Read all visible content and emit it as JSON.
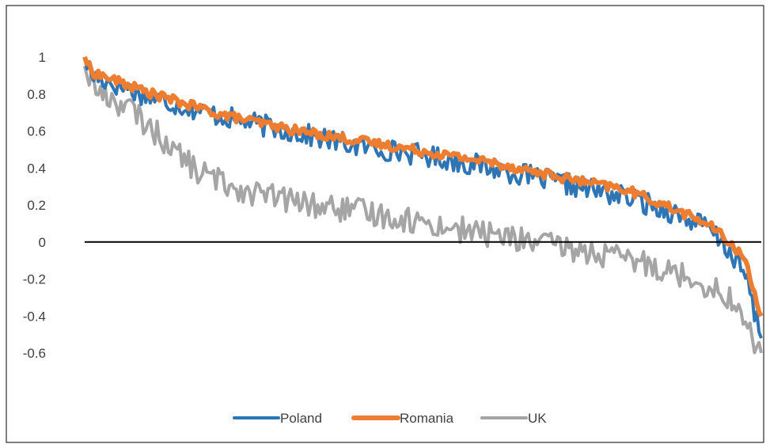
{
  "chart_data": {
    "type": "line",
    "title": "",
    "xlabel": "",
    "ylabel": "",
    "ylim": [
      -0.6,
      1.0
    ],
    "yticks": [
      "1",
      "0.8",
      "0.6",
      "0.4",
      "0.2",
      "0",
      "-0.2",
      "-0.4",
      "-0.6"
    ],
    "zero_line": true,
    "grid": false,
    "legend_position": "bottom",
    "n_points": 300,
    "series": [
      {
        "name": "Poland",
        "color": "#2E75B6",
        "anchors": [
          [
            0,
            1.0
          ],
          [
            3,
            0.9
          ],
          [
            30,
            0.78
          ],
          [
            60,
            0.68
          ],
          [
            90,
            0.6
          ],
          [
            120,
            0.52
          ],
          [
            150,
            0.47
          ],
          [
            180,
            0.4
          ],
          [
            210,
            0.32
          ],
          [
            240,
            0.24
          ],
          [
            260,
            0.16
          ],
          [
            275,
            0.08
          ],
          [
            285,
            -0.05
          ],
          [
            292,
            -0.18
          ],
          [
            299,
            -0.52
          ]
        ],
        "noise": 0.06
      },
      {
        "name": "Romania",
        "color": "#ED7D31",
        "anchors": [
          [
            0,
            1.0
          ],
          [
            3,
            0.92
          ],
          [
            30,
            0.8
          ],
          [
            60,
            0.69
          ],
          [
            90,
            0.61
          ],
          [
            120,
            0.55
          ],
          [
            150,
            0.49
          ],
          [
            180,
            0.43
          ],
          [
            210,
            0.35
          ],
          [
            240,
            0.28
          ],
          [
            260,
            0.18
          ],
          [
            275,
            0.1
          ],
          [
            285,
            0.0
          ],
          [
            292,
            -0.1
          ],
          [
            299,
            -0.4
          ]
        ],
        "noise": 0.025
      },
      {
        "name": "UK",
        "color": "#A5A5A5",
        "anchors": [
          [
            0,
            0.95
          ],
          [
            5,
            0.82
          ],
          [
            20,
            0.72
          ],
          [
            35,
            0.55
          ],
          [
            50,
            0.38
          ],
          [
            70,
            0.28
          ],
          [
            100,
            0.2
          ],
          [
            130,
            0.15
          ],
          [
            160,
            0.08
          ],
          [
            190,
            0.02
          ],
          [
            220,
            -0.05
          ],
          [
            250,
            -0.12
          ],
          [
            270,
            -0.2
          ],
          [
            285,
            -0.3
          ],
          [
            299,
            -0.6
          ]
        ],
        "noise": 0.07
      }
    ]
  }
}
